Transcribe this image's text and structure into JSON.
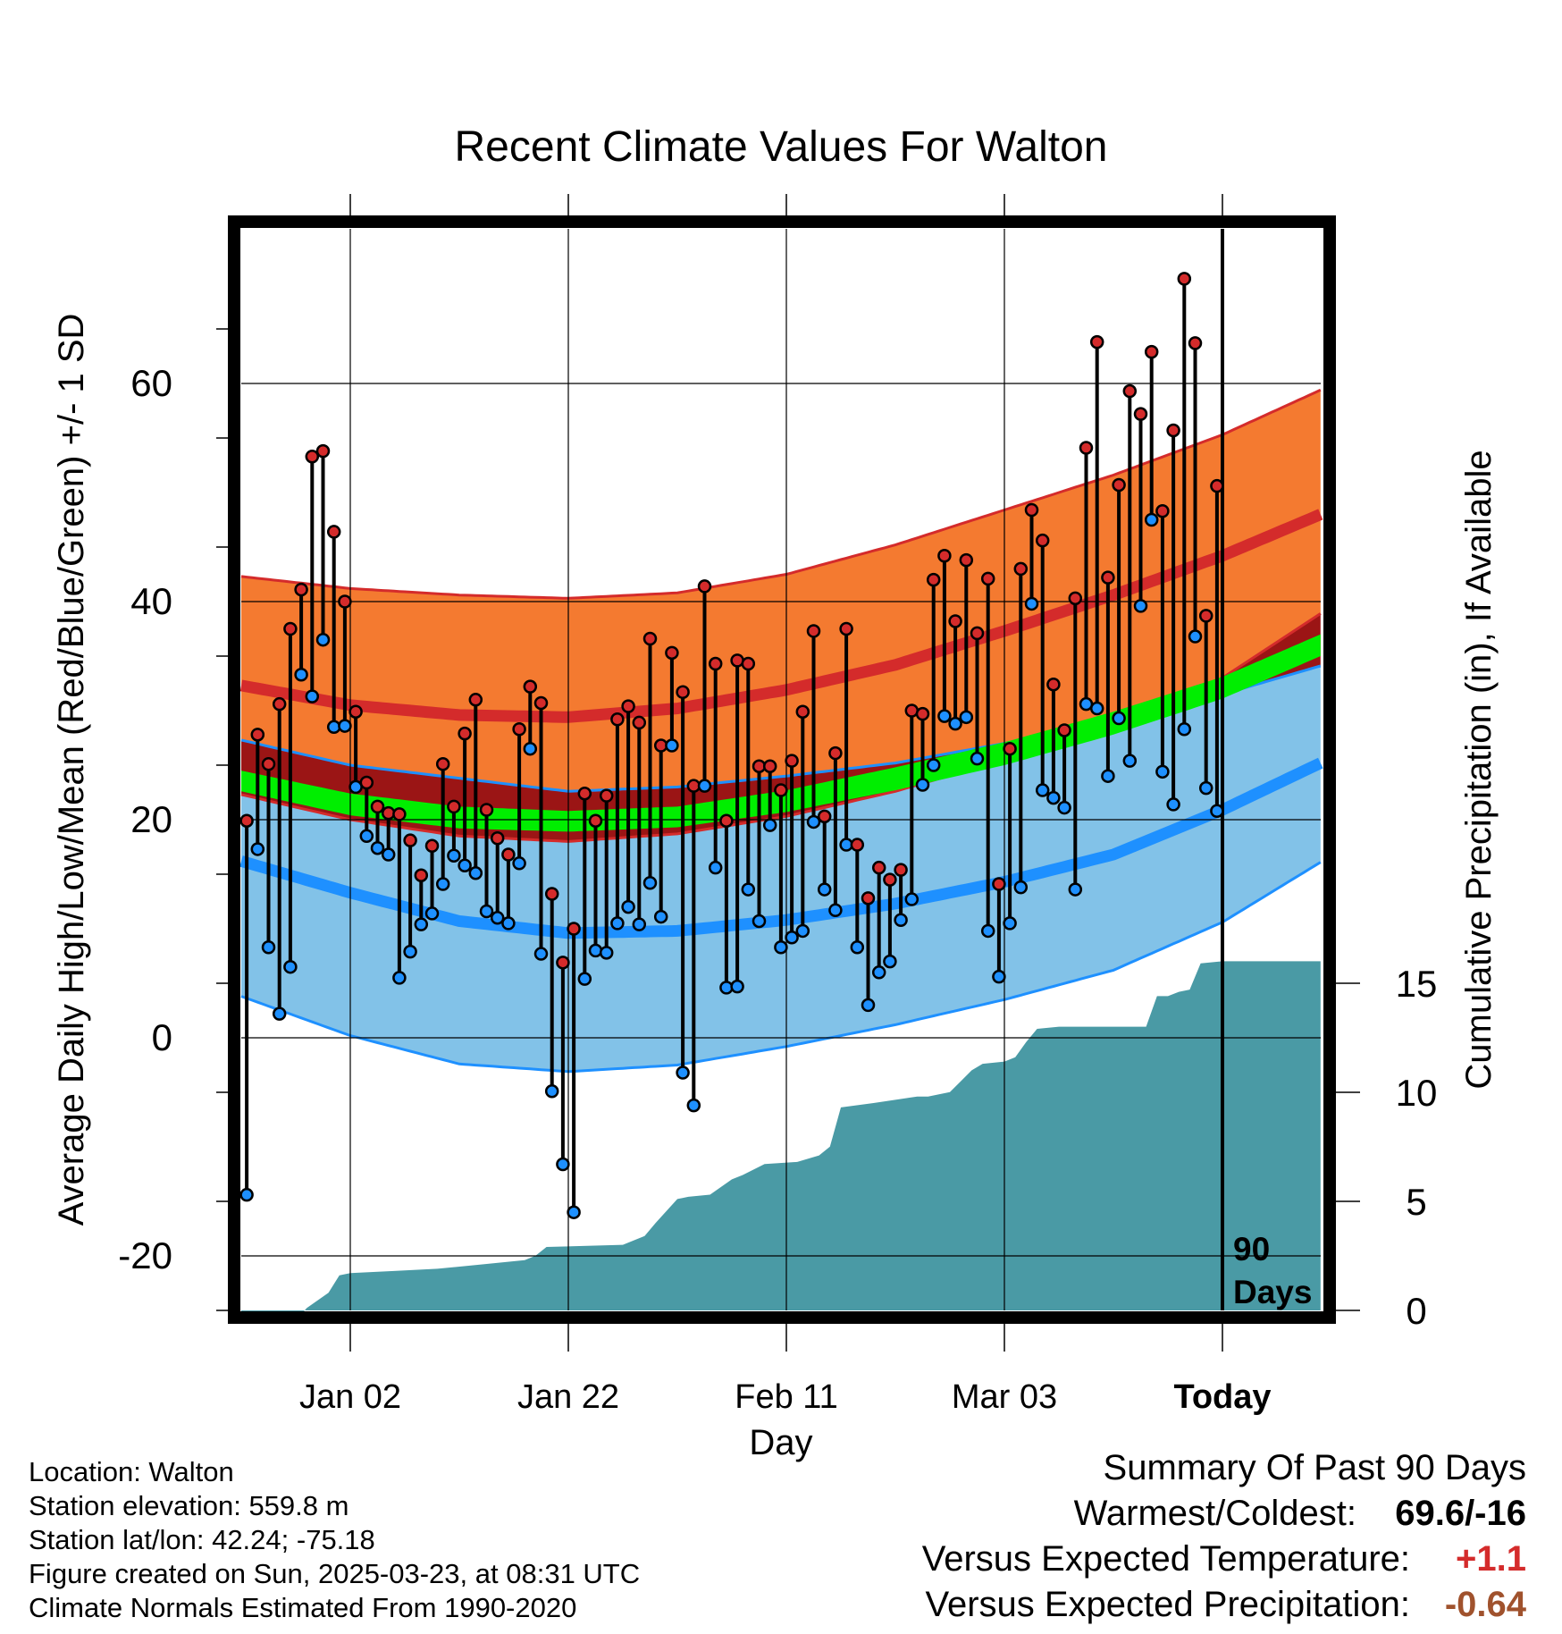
{
  "chart_data": {
    "type": "line",
    "title": "Recent Climate Values For Walton",
    "xlabel": "Day",
    "ylabel_left": "Average Daily High/Low/Mean (Red/Blue/Green) +/- 1 SD",
    "ylabel_right": "Cumulative Precipitation (in), If Available",
    "x_day_range": [
      0,
      99
    ],
    "today_day": 90,
    "x_ticks": [
      {
        "day": 10,
        "label": "Jan 02",
        "bold": false
      },
      {
        "day": 30,
        "label": "Jan 22",
        "bold": false
      },
      {
        "day": 50,
        "label": "Feb 11",
        "bold": false
      },
      {
        "day": 70,
        "label": "Mar 03",
        "bold": false
      },
      {
        "day": 90,
        "label": "Today",
        "bold": true
      }
    ],
    "ylim_temp": [
      -25,
      75
    ],
    "y_ticks_temp": [
      -20,
      0,
      20,
      40,
      60
    ],
    "ylim_precip": [
      0,
      50
    ],
    "y_ticks_precip": [
      0,
      5,
      10,
      15
    ],
    "grid": true,
    "annotation": "90 Days",
    "series_colors": {
      "high_band": "#f47a30",
      "high_mean": "#d42b2b",
      "low_band": "#82c2e8",
      "low_mean": "#1e90ff",
      "mean_band": "#9b1515",
      "mean_line": "#00ee00",
      "precip": "#4a9aa5",
      "obs_high_dot": "#d42b2b",
      "obs_low_dot": "#1e90ff"
    },
    "normals": {
      "high_upper": [
        [
          0,
          42.3
        ],
        [
          10,
          41.2
        ],
        [
          20,
          40.6
        ],
        [
          30,
          40.3
        ],
        [
          40,
          40.8
        ],
        [
          50,
          42.5
        ],
        [
          60,
          45.2
        ],
        [
          70,
          48.4
        ],
        [
          80,
          51.6
        ],
        [
          90,
          55.3
        ],
        [
          99,
          59.4
        ]
      ],
      "high_mean": [
        [
          0,
          32.3
        ],
        [
          10,
          30.5
        ],
        [
          20,
          29.6
        ],
        [
          30,
          29.4
        ],
        [
          40,
          30.2
        ],
        [
          50,
          31.9
        ],
        [
          60,
          34.2
        ],
        [
          70,
          37.3
        ],
        [
          80,
          40.6
        ],
        [
          90,
          44.2
        ],
        [
          99,
          48.0
        ]
      ],
      "high_lower": [
        [
          0,
          22.3
        ],
        [
          10,
          20.0
        ],
        [
          20,
          18.5
        ],
        [
          30,
          18.0
        ],
        [
          40,
          18.7
        ],
        [
          50,
          20.3
        ],
        [
          60,
          22.6
        ],
        [
          70,
          25.5
        ],
        [
          80,
          28.7
        ],
        [
          90,
          33.0
        ],
        [
          99,
          38.9
        ]
      ],
      "mean_upper": [
        [
          0,
          24.5
        ],
        [
          10,
          22.4
        ],
        [
          20,
          21.2
        ],
        [
          30,
          20.8
        ],
        [
          40,
          21.2
        ],
        [
          50,
          22.7
        ],
        [
          60,
          24.8
        ],
        [
          70,
          27.1
        ],
        [
          80,
          29.9
        ],
        [
          90,
          33.1
        ],
        [
          99,
          37.0
        ]
      ],
      "mean_lower": [
        [
          0,
          22.6
        ],
        [
          10,
          20.4
        ],
        [
          20,
          19.2
        ],
        [
          30,
          18.9
        ],
        [
          40,
          19.3
        ],
        [
          50,
          20.7
        ],
        [
          60,
          22.7
        ],
        [
          70,
          25.0
        ],
        [
          80,
          27.8
        ],
        [
          90,
          31.1
        ],
        [
          99,
          35.0
        ]
      ],
      "low_upper": [
        [
          0,
          27.3
        ],
        [
          10,
          25.0
        ],
        [
          20,
          23.8
        ],
        [
          30,
          22.6
        ],
        [
          40,
          23.0
        ],
        [
          50,
          24.0
        ],
        [
          60,
          25.2
        ],
        [
          70,
          27.0
        ],
        [
          80,
          28.8
        ],
        [
          90,
          31.5
        ],
        [
          99,
          34.1
        ]
      ],
      "low_mean": [
        [
          0,
          16.2
        ],
        [
          10,
          13.3
        ],
        [
          20,
          10.7
        ],
        [
          30,
          9.6
        ],
        [
          40,
          9.8
        ],
        [
          50,
          10.8
        ],
        [
          60,
          12.3
        ],
        [
          70,
          14.3
        ],
        [
          80,
          16.8
        ],
        [
          90,
          20.9
        ],
        [
          99,
          25.2
        ]
      ],
      "low_lower": [
        [
          0,
          3.8
        ],
        [
          10,
          0.2
        ],
        [
          20,
          -2.4
        ],
        [
          30,
          -3.1
        ],
        [
          40,
          -2.5
        ],
        [
          50,
          -0.8
        ],
        [
          60,
          1.2
        ],
        [
          70,
          3.5
        ],
        [
          80,
          6.2
        ],
        [
          90,
          10.6
        ],
        [
          99,
          16.1
        ]
      ]
    },
    "observed_daily": [
      {
        "d": 0,
        "hi": 19.9,
        "lo": -14.4
      },
      {
        "d": 1,
        "hi": 27.8,
        "lo": 17.3
      },
      {
        "d": 2,
        "hi": 25.1,
        "lo": 8.3
      },
      {
        "d": 3,
        "hi": 30.6,
        "lo": 2.2
      },
      {
        "d": 4,
        "hi": 37.5,
        "lo": 6.5
      },
      {
        "d": 5,
        "hi": 41.1,
        "lo": 33.3
      },
      {
        "d": 6,
        "hi": 53.3,
        "lo": 31.3
      },
      {
        "d": 7,
        "hi": 53.8,
        "lo": 36.5
      },
      {
        "d": 8,
        "hi": 46.4,
        "lo": 28.5
      },
      {
        "d": 9,
        "hi": 40.0,
        "lo": 28.6
      },
      {
        "d": 10,
        "hi": 29.9,
        "lo": 23.0
      },
      {
        "d": 11,
        "hi": 23.4,
        "lo": 18.5
      },
      {
        "d": 12,
        "hi": 21.2,
        "lo": 17.4
      },
      {
        "d": 13,
        "hi": 20.6,
        "lo": 16.8
      },
      {
        "d": 14,
        "hi": 20.5,
        "lo": 5.5
      },
      {
        "d": 15,
        "hi": 18.1,
        "lo": 7.9
      },
      {
        "d": 16,
        "hi": 14.9,
        "lo": 10.4
      },
      {
        "d": 17,
        "hi": 17.6,
        "lo": 11.4
      },
      {
        "d": 18,
        "hi": 25.1,
        "lo": 14.1
      },
      {
        "d": 19,
        "hi": 21.2,
        "lo": 16.7
      },
      {
        "d": 20,
        "hi": 27.9,
        "lo": 15.8
      },
      {
        "d": 21,
        "hi": 31.0,
        "lo": 15.1
      },
      {
        "d": 22,
        "hi": 20.9,
        "lo": 11.6
      },
      {
        "d": 23,
        "hi": 18.3,
        "lo": 11.0
      },
      {
        "d": 24,
        "hi": 16.8,
        "lo": 10.5
      },
      {
        "d": 25,
        "hi": 28.3,
        "lo": 16.0
      },
      {
        "d": 26,
        "hi": 32.2,
        "lo": 26.5
      },
      {
        "d": 27,
        "hi": 30.7,
        "lo": 7.7
      },
      {
        "d": 28,
        "hi": 13.2,
        "lo": -4.9
      },
      {
        "d": 29,
        "hi": 6.9,
        "lo": -11.6
      },
      {
        "d": 30,
        "hi": 10.0,
        "lo": -16.0
      },
      {
        "d": 31,
        "hi": 22.4,
        "lo": 5.4
      },
      {
        "d": 32,
        "hi": 19.9,
        "lo": 8.0
      },
      {
        "d": 33,
        "hi": 22.2,
        "lo": 7.8
      },
      {
        "d": 34,
        "hi": 29.2,
        "lo": 10.5
      },
      {
        "d": 35,
        "hi": 30.4,
        "lo": 12.0
      },
      {
        "d": 36,
        "hi": 28.9,
        "lo": 10.4
      },
      {
        "d": 37,
        "hi": 36.6,
        "lo": 14.2
      },
      {
        "d": 38,
        "hi": 26.8,
        "lo": 11.1
      },
      {
        "d": 39,
        "hi": 35.3,
        "lo": 26.8
      },
      {
        "d": 40,
        "hi": 31.7,
        "lo": -3.2
      },
      {
        "d": 41,
        "hi": 23.1,
        "lo": -6.2
      },
      {
        "d": 42,
        "hi": 41.4,
        "lo": 23.1
      },
      {
        "d": 43,
        "hi": 34.3,
        "lo": 15.6
      },
      {
        "d": 44,
        "hi": 19.9,
        "lo": 4.6
      },
      {
        "d": 45,
        "hi": 34.6,
        "lo": 4.7
      },
      {
        "d": 46,
        "hi": 34.3,
        "lo": 13.6
      },
      {
        "d": 47,
        "hi": 24.9,
        "lo": 10.7
      },
      {
        "d": 48,
        "hi": 24.9,
        "lo": 19.5
      },
      {
        "d": 49,
        "hi": 22.7,
        "lo": 8.3
      },
      {
        "d": 50,
        "hi": 25.4,
        "lo": 9.2
      },
      {
        "d": 51,
        "hi": 29.9,
        "lo": 9.8
      },
      {
        "d": 52,
        "hi": 37.3,
        "lo": 19.8
      },
      {
        "d": 53,
        "hi": 20.3,
        "lo": 13.6
      },
      {
        "d": 54,
        "hi": 26.1,
        "lo": 11.7
      },
      {
        "d": 55,
        "hi": 37.5,
        "lo": 17.7
      },
      {
        "d": 56,
        "hi": 17.7,
        "lo": 8.3
      },
      {
        "d": 57,
        "hi": 12.8,
        "lo": 3.0
      },
      {
        "d": 58,
        "hi": 15.6,
        "lo": 6.0
      },
      {
        "d": 59,
        "hi": 14.5,
        "lo": 7.0
      },
      {
        "d": 60,
        "hi": 15.4,
        "lo": 10.8
      },
      {
        "d": 61,
        "hi": 30.0,
        "lo": 12.7
      },
      {
        "d": 62,
        "hi": 29.7,
        "lo": 23.2
      },
      {
        "d": 63,
        "hi": 42.0,
        "lo": 25.0
      },
      {
        "d": 64,
        "hi": 44.2,
        "lo": 29.5
      },
      {
        "d": 65,
        "hi": 38.2,
        "lo": 28.8
      },
      {
        "d": 66,
        "hi": 43.8,
        "lo": 29.4
      },
      {
        "d": 67,
        "hi": 37.1,
        "lo": 25.6
      },
      {
        "d": 68,
        "hi": 42.1,
        "lo": 9.8
      },
      {
        "d": 69,
        "hi": 14.1,
        "lo": 5.6
      },
      {
        "d": 70,
        "hi": 26.5,
        "lo": 10.5
      },
      {
        "d": 71,
        "hi": 43.0,
        "lo": 13.8
      },
      {
        "d": 72,
        "hi": 48.4,
        "lo": 39.8
      },
      {
        "d": 73,
        "hi": 45.6,
        "lo": 22.7
      },
      {
        "d": 74,
        "hi": 32.4,
        "lo": 22.0
      },
      {
        "d": 75,
        "hi": 28.2,
        "lo": 21.1
      },
      {
        "d": 76,
        "hi": 40.3,
        "lo": 13.6
      },
      {
        "d": 77,
        "hi": 54.1,
        "lo": 30.6
      },
      {
        "d": 78,
        "hi": 63.8,
        "lo": 30.2
      },
      {
        "d": 79,
        "hi": 42.2,
        "lo": 24.0
      },
      {
        "d": 80,
        "hi": 50.7,
        "lo": 29.3
      },
      {
        "d": 81,
        "hi": 59.3,
        "lo": 25.4
      },
      {
        "d": 82,
        "hi": 57.2,
        "lo": 39.6
      },
      {
        "d": 83,
        "hi": 62.9,
        "lo": 47.5
      },
      {
        "d": 84,
        "hi": 48.3,
        "lo": 24.4
      },
      {
        "d": 85,
        "hi": 55.7,
        "lo": 21.4
      },
      {
        "d": 86,
        "hi": 69.6,
        "lo": 28.3
      },
      {
        "d": 87,
        "hi": 63.7,
        "lo": 36.8
      },
      {
        "d": 88,
        "hi": 38.7,
        "lo": 22.9
      },
      {
        "d": 89,
        "hi": 50.6,
        "lo": 20.8
      }
    ],
    "cumulative_precip": [
      [
        0,
        0
      ],
      [
        5,
        0
      ],
      [
        6,
        0.6
      ],
      [
        8,
        1.3
      ],
      [
        9,
        2.1
      ],
      [
        10,
        2.2
      ],
      [
        14,
        2.3
      ],
      [
        18,
        2.4
      ],
      [
        22,
        2.6
      ],
      [
        26,
        2.8
      ],
      [
        27,
        3.0
      ],
      [
        28,
        3.4
      ],
      [
        35,
        3.5
      ],
      [
        37,
        3.9
      ],
      [
        38,
        4.5
      ],
      [
        40,
        5.6
      ],
      [
        41,
        5.7
      ],
      [
        43,
        5.8
      ],
      [
        45,
        6.5
      ],
      [
        46,
        6.7
      ],
      [
        48,
        7.2
      ],
      [
        51,
        7.3
      ],
      [
        53,
        7.6
      ],
      [
        54,
        8.0
      ],
      [
        55,
        9.8
      ],
      [
        58,
        10.0
      ],
      [
        62,
        10.3
      ],
      [
        63,
        10.3
      ],
      [
        65,
        10.5
      ],
      [
        66,
        11.0
      ],
      [
        67,
        11.5
      ],
      [
        68,
        11.8
      ],
      [
        70,
        11.9
      ],
      [
        71,
        12.1
      ],
      [
        72,
        12.8
      ],
      [
        73,
        13.4
      ],
      [
        75,
        13.5
      ],
      [
        83,
        13.5
      ],
      [
        84,
        14.9
      ],
      [
        85,
        14.9
      ],
      [
        86,
        15.1
      ],
      [
        87,
        15.2
      ],
      [
        88,
        16.4
      ],
      [
        90,
        16.5
      ],
      [
        99,
        16.5
      ]
    ]
  },
  "location_info": {
    "location": "Location: Walton",
    "elevation": "Station elevation: 559.8 m",
    "latlon": "Station lat/lon: 42.24; -75.18",
    "created": "Figure created on Sun, 2025-03-23, at 08:31 UTC",
    "normals": "Climate Normals Estimated From 1990-2020"
  },
  "summary": {
    "title": "Summary Of Past 90 Days",
    "warm_cold_label": "Warmest/Coldest:",
    "warm_cold_value": "69.6/-16",
    "temp_label": "Versus Expected Temperature:",
    "temp_value": "+1.1",
    "precip_label": "Versus Expected Precipitation:",
    "precip_value": "-0.64"
  }
}
